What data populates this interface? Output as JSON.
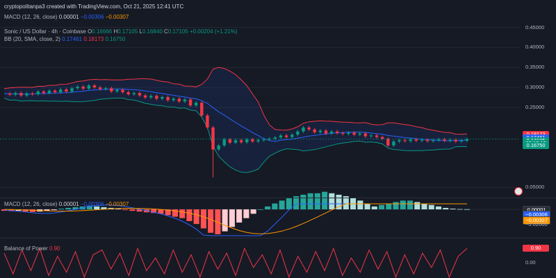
{
  "header": {
    "credit": "cryptopolitanpa3 created with TradingView.com, Oct 21, 2025 12:41 UTC",
    "macd_top": {
      "label": "MACD (12, 26, close)",
      "v1": "0.00001",
      "v2": "−0.00306",
      "v3": "−0.00307"
    }
  },
  "legend": {
    "symbol": "Sonic / US Dollar · 4h · Coinbase",
    "o_k": "O",
    "o": "0.16666",
    "h_k": "H",
    "h": "0.17105",
    "l_k": "L",
    "l": "0.16840",
    "c_k": "C",
    "c": "0.17105",
    "chg": "+0.00204 (+1.21%)",
    "bb_label": "BB (20, SMA, close, 2)",
    "bb1": "0.17461",
    "bb2": "0.18173",
    "bb3": "0.16750"
  },
  "price_axis": {
    "ticks": [
      {
        "text": "0.45000",
        "v": 0.45
      },
      {
        "text": "0.40000",
        "v": 0.4
      },
      {
        "text": "0.35000",
        "v": 0.35
      },
      {
        "text": "0.30000",
        "v": 0.3
      },
      {
        "text": "0.25000",
        "v": 0.25
      },
      {
        "text": "0.05000",
        "v": 0.05
      }
    ],
    "tags": [
      {
        "text": "0.18173",
        "color": "#f23645",
        "v": 0.18173
      },
      {
        "text": "0.17461",
        "color": "#2962ff",
        "v": 0.17461
      },
      {
        "text": "0.17105",
        "color": "#089981",
        "v": 0.1665
      },
      {
        "text": "03:18:17",
        "color": "#089981",
        "v": 0.1595
      },
      {
        "text": "0.16750",
        "color": "#089981",
        "v": 0.1545
      }
    ]
  },
  "macd_pane": {
    "label": "MACD (12, 26, close)",
    "v1": "0.00001",
    "v2": "−0.00306",
    "v3": "−0.00307",
    "tags": [
      {
        "text": "0.00001",
        "color": "#2a2e39",
        "v": 0.0
      },
      {
        "text": "−0.00306",
        "color": "#2962ff",
        "v": -0.0035
      },
      {
        "text": "−0.00307",
        "color": "#ff9800",
        "v": -0.007
      }
    ],
    "ticks": [
      {
        "text": "−0.02000",
        "v": -0.0105
      }
    ]
  },
  "bop_pane": {
    "label": "Balance of Power",
    "value": "0.90",
    "tag": {
      "text": "0.90",
      "color": "#f23645",
      "v": 0.9
    },
    "ticks": [
      {
        "text": "0.00",
        "v": 0.0
      }
    ]
  },
  "colors": {
    "up": "#089981",
    "down": "#f23645",
    "bb_mid": "#2962ff",
    "bb_upper": "#f23645",
    "bb_lower": "#089981",
    "macd": "#2962ff",
    "signal": "#ff9800",
    "bop": "#f23645",
    "background": "#161a25"
  },
  "chart_data": {
    "type": "candlestick",
    "title": "Sonic / US Dollar · 4h · Coinbase",
    "ylim": [
      0.03,
      0.47
    ],
    "close": [
      0.285,
      0.282,
      0.286,
      0.28,
      0.285,
      0.283,
      0.29,
      0.286,
      0.292,
      0.288,
      0.295,
      0.29,
      0.298,
      0.302,
      0.297,
      0.305,
      0.3,
      0.296,
      0.298,
      0.29,
      0.294,
      0.288,
      0.283,
      0.286,
      0.28,
      0.275,
      0.279,
      0.272,
      0.276,
      0.268,
      0.272,
      0.265,
      0.27,
      0.255,
      0.262,
      0.23,
      0.2,
      0.145,
      0.155,
      0.17,
      0.162,
      0.168,
      0.163,
      0.17,
      0.165,
      0.168,
      0.17,
      0.172,
      0.175,
      0.18,
      0.176,
      0.182,
      0.19,
      0.2,
      0.195,
      0.188,
      0.192,
      0.185,
      0.19,
      0.186,
      0.184,
      0.187,
      0.182,
      0.185,
      0.178,
      0.18,
      0.176,
      0.172,
      0.155,
      0.165,
      0.168,
      0.166,
      0.17,
      0.167,
      0.169,
      0.166,
      0.168,
      0.17,
      0.167,
      0.169,
      0.165,
      0.167,
      0.171
    ],
    "low_spike": {
      "index": 37,
      "value": 0.075
    },
    "macd_hist": [
      -0.001,
      -0.0012,
      -0.001,
      -0.0015,
      -0.0018,
      -0.0015,
      -0.001,
      -0.0005,
      0.0005,
      0.001,
      0.0015,
      0.002,
      0.0025,
      0.002,
      0.0015,
      0.001,
      0.0005,
      -0.0005,
      -0.001,
      -0.0015,
      -0.002,
      -0.0025,
      -0.003,
      -0.004,
      -0.005,
      -0.006,
      -0.008,
      -0.01,
      -0.013,
      -0.016,
      -0.017,
      -0.015,
      -0.012,
      -0.009,
      -0.006,
      -0.003,
      0.0,
      0.002,
      0.004,
      0.006,
      0.008,
      0.009,
      0.01,
      0.011,
      0.011,
      0.012,
      0.011,
      0.01,
      0.009,
      0.008,
      0.006,
      0.004,
      0.002,
      0.003,
      0.004,
      0.005,
      0.006,
      0.006,
      0.005,
      0.004,
      0.003,
      0.002,
      0.001,
      0.0005,
      0.0002,
      0.0001
    ],
    "bop": [
      0.6,
      -0.7,
      0.8,
      -0.5,
      0.9,
      -0.8,
      0.4,
      -0.6,
      0.7,
      -0.9,
      0.5,
      0.8,
      -0.4,
      0.6,
      -0.8,
      0.9,
      -0.5,
      0.3,
      -0.7,
      0.8,
      -0.6,
      0.5,
      -0.9,
      0.7,
      -0.4,
      0.6,
      -0.8,
      0.9,
      -0.3,
      0.5,
      -0.7,
      0.8,
      -0.9,
      0.4,
      -0.6,
      0.7,
      -0.5,
      0.9,
      -0.8,
      0.3,
      -0.6,
      0.8,
      -0.4,
      0.7,
      -0.9,
      0.5,
      -0.7,
      0.6,
      -0.3,
      0.8,
      -0.9,
      0.4,
      0.9
    ]
  }
}
